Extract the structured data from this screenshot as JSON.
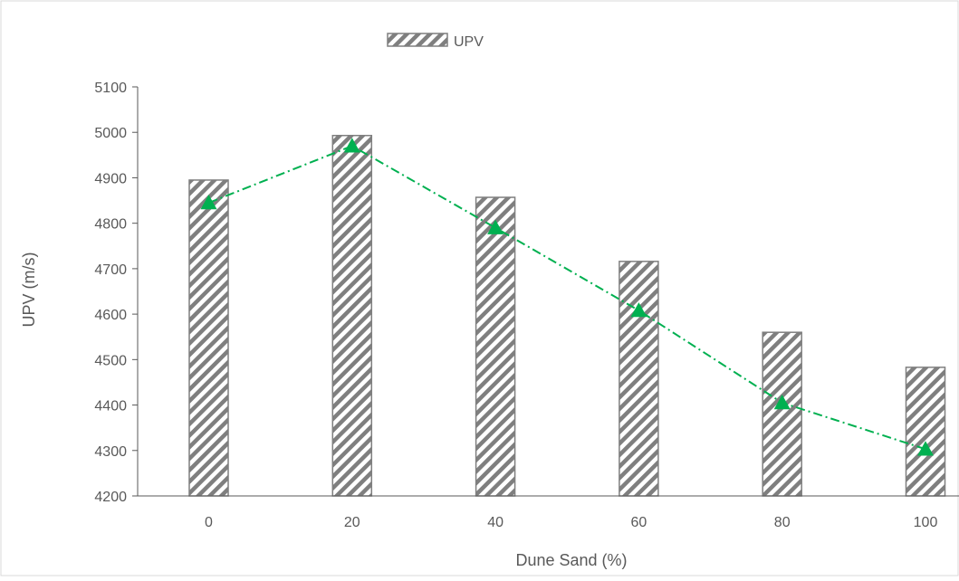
{
  "chart_data": {
    "type": "bar",
    "categories": [
      "0",
      "20",
      "40",
      "60",
      "80",
      "100"
    ],
    "series": [
      {
        "name": "UPV",
        "kind": "bar",
        "values": [
          4895,
          4993,
          4857,
          4716,
          4560,
          4483
        ]
      },
      {
        "kind": "line",
        "values": [
          4845,
          4970,
          4790,
          4608,
          4405,
          4303
        ]
      }
    ],
    "xlabel": "Dune Sand (%)",
    "ylabel": "UPV (m/s)",
    "ylim": [
      4200,
      5100
    ],
    "yticks": [
      4200,
      4300,
      4400,
      4500,
      4600,
      4700,
      4800,
      4900,
      5000,
      5100
    ],
    "grid": false,
    "legend": "top-center",
    "colors": {
      "bar_stroke": "#7f7f7f",
      "hatch": "#7f7f7f",
      "line": "#00b050",
      "marker": "#00b050",
      "axis": "#595959"
    }
  }
}
